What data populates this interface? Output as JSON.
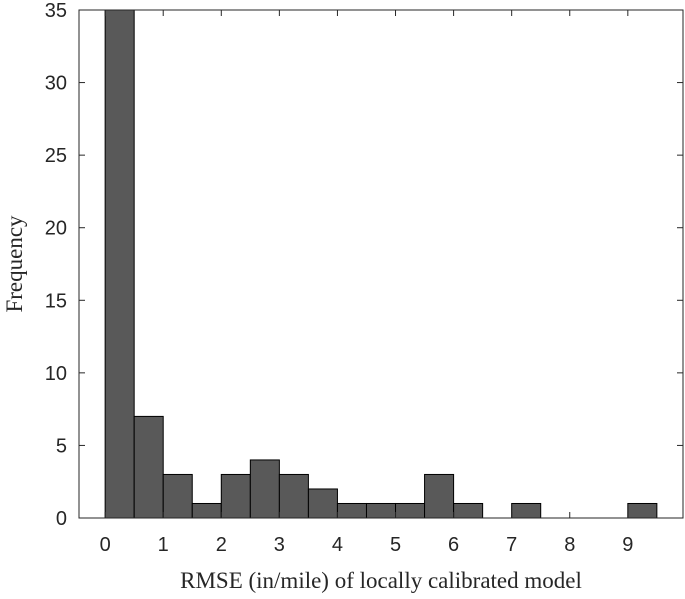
{
  "chart_data": {
    "type": "bar",
    "subtype": "histogram",
    "title": "",
    "xlabel": "RMSE (in/mile) of locally calibrated model",
    "ylabel": "Frequency",
    "xlim": [
      -0.45,
      9.95
    ],
    "ylim": [
      0,
      35
    ],
    "xticks": [
      0,
      1,
      2,
      3,
      4,
      5,
      6,
      7,
      8,
      9
    ],
    "xtick_labels": [
      "0",
      "1",
      "2",
      "3",
      "4",
      "5",
      "6",
      "7",
      "8",
      "9"
    ],
    "yticks": [
      0,
      5,
      10,
      15,
      20,
      25,
      30,
      35
    ],
    "ytick_labels": [
      "0",
      "5",
      "10",
      "15",
      "20",
      "25",
      "30",
      "35"
    ],
    "bin_width": 0.5,
    "bin_edges": [
      0,
      0.5,
      1,
      1.5,
      2,
      2.5,
      3,
      3.5,
      4,
      4.5,
      5,
      5.5,
      6,
      6.5,
      7,
      7.5,
      8,
      8.5,
      9,
      9.5
    ],
    "counts": [
      35,
      7,
      3,
      1,
      3,
      4,
      3,
      2,
      1,
      1,
      1,
      3,
      1,
      0,
      1,
      0,
      0,
      0,
      1
    ],
    "bar_color": "#595959",
    "edge_color": "#000000",
    "grid": false,
    "legend": "none"
  }
}
